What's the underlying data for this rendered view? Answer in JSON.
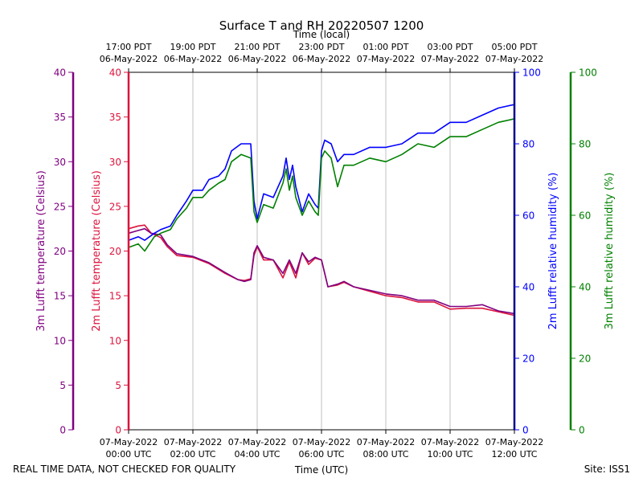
{
  "chart_data": {
    "type": "line",
    "title": "Surface T and RH 20220507 1200",
    "top_axis_label": "Time (local)",
    "xlabel": "Time (UTC)",
    "xlim_hours_utc": [
      0,
      12
    ],
    "bottom_ticks": [
      {
        "hour": 0,
        "date": "07-May-2022",
        "time": "00:00 UTC"
      },
      {
        "hour": 2,
        "date": "07-May-2022",
        "time": "02:00 UTC"
      },
      {
        "hour": 4,
        "date": "07-May-2022",
        "time": "04:00 UTC"
      },
      {
        "hour": 6,
        "date": "07-May-2022",
        "time": "06:00 UTC"
      },
      {
        "hour": 8,
        "date": "07-May-2022",
        "time": "08:00 UTC"
      },
      {
        "hour": 10,
        "date": "07-May-2022",
        "time": "10:00 UTC"
      },
      {
        "hour": 12,
        "date": "07-May-2022",
        "time": "12:00 UTC"
      }
    ],
    "top_ticks": [
      {
        "hour": 0,
        "time": "17:00 PDT",
        "date": "06-May-2022"
      },
      {
        "hour": 2,
        "time": "19:00 PDT",
        "date": "06-May-2022"
      },
      {
        "hour": 4,
        "time": "21:00 PDT",
        "date": "06-May-2022"
      },
      {
        "hour": 6,
        "time": "23:00 PDT",
        "date": "06-May-2022"
      },
      {
        "hour": 8,
        "time": "01:00 PDT",
        "date": "07-May-2022"
      },
      {
        "hour": 10,
        "time": "03:00 PDT",
        "date": "07-May-2022"
      },
      {
        "hour": 12,
        "time": "05:00 PDT",
        "date": "07-May-2022"
      }
    ],
    "axes": [
      {
        "id": "t3",
        "label": "3m Lufft temperature (Celsius)",
        "color": "#800080",
        "side": "left",
        "ylim": [
          0,
          40
        ],
        "ticks": [
          0,
          5,
          10,
          15,
          20,
          25,
          30,
          35,
          40
        ]
      },
      {
        "id": "t2",
        "label": "2m Lufft temperature (Celsius)",
        "color": "#dc143c",
        "side": "left",
        "ylim": [
          0,
          40
        ],
        "ticks": [
          0,
          5,
          10,
          15,
          20,
          25,
          30,
          35,
          40
        ]
      },
      {
        "id": "rh2",
        "label": "2m Lufft relative humidity (%)",
        "color": "#0000ff",
        "tick_color": "#0000ff",
        "spine_color": "#00008b",
        "side": "right",
        "ylim": [
          0,
          100
        ],
        "ticks": [
          0,
          20,
          40,
          60,
          80,
          100
        ]
      },
      {
        "id": "rh3",
        "label": "3m Lufft relative humidity (%)",
        "color": "#008000",
        "side": "right",
        "ylim": [
          0,
          100
        ],
        "ticks": [
          0,
          20,
          40,
          60,
          80,
          100
        ]
      }
    ],
    "series": [
      {
        "name": "2m Lufft temperature",
        "axis": "t2",
        "color": "#dc143c",
        "x": [
          0,
          0.3,
          0.5,
          0.7,
          1.0,
          1.2,
          1.5,
          2.0,
          2.5,
          3.0,
          3.4,
          3.6,
          3.8,
          3.9,
          4.0,
          4.2,
          4.5,
          4.8,
          5.0,
          5.2,
          5.4,
          5.6,
          5.8,
          6.0,
          6.2,
          6.5,
          6.7,
          7.0,
          7.5,
          8.0,
          8.5,
          9.0,
          9.5,
          10.0,
          10.5,
          11.0,
          11.5,
          12.0
        ],
        "values": [
          22.5,
          22.8,
          22.9,
          22.0,
          21.5,
          20.5,
          19.5,
          19.3,
          18.6,
          17.5,
          16.8,
          16.7,
          16.9,
          19.5,
          20.5,
          19.0,
          19.0,
          17.0,
          18.8,
          17.0,
          19.8,
          18.5,
          19.2,
          19.0,
          16.0,
          16.2,
          16.5,
          16.0,
          15.5,
          15.0,
          14.8,
          14.3,
          14.3,
          13.5,
          13.6,
          13.6,
          13.2,
          12.8
        ]
      },
      {
        "name": "3m Lufft temperature",
        "axis": "t3",
        "color": "#800080",
        "x": [
          0,
          0.3,
          0.5,
          0.7,
          1.0,
          1.2,
          1.5,
          2.0,
          2.5,
          3.0,
          3.4,
          3.6,
          3.8,
          3.9,
          4.0,
          4.2,
          4.5,
          4.8,
          5.0,
          5.2,
          5.4,
          5.6,
          5.8,
          6.0,
          6.2,
          6.5,
          6.7,
          7.0,
          7.5,
          8.0,
          8.5,
          9.0,
          9.5,
          10.0,
          10.5,
          11.0,
          11.5,
          12.0
        ],
        "values": [
          22.0,
          22.3,
          22.5,
          22.0,
          21.8,
          20.7,
          19.7,
          19.4,
          18.7,
          17.6,
          16.8,
          16.6,
          16.8,
          19.8,
          20.6,
          19.3,
          19.0,
          17.5,
          19.0,
          17.5,
          19.8,
          18.8,
          19.3,
          19.0,
          16.0,
          16.3,
          16.6,
          16.0,
          15.6,
          15.2,
          15.0,
          14.5,
          14.5,
          13.8,
          13.8,
          14.0,
          13.3,
          13.0
        ]
      },
      {
        "name": "2m Lufft relative humidity",
        "axis": "rh2",
        "color": "#0000ff",
        "x": [
          0,
          0.3,
          0.5,
          0.8,
          1.0,
          1.3,
          1.5,
          1.8,
          2.0,
          2.3,
          2.5,
          2.8,
          3.0,
          3.2,
          3.5,
          3.8,
          3.9,
          4.0,
          4.2,
          4.5,
          4.8,
          4.9,
          5.0,
          5.1,
          5.2,
          5.4,
          5.6,
          5.8,
          5.9,
          6.0,
          6.1,
          6.3,
          6.5,
          6.7,
          7.0,
          7.5,
          8.0,
          8.5,
          9.0,
          9.5,
          10.0,
          10.5,
          11.0,
          11.5,
          12.0
        ],
        "values": [
          53,
          54,
          53,
          55,
          56,
          57,
          60,
          64,
          67,
          67,
          70,
          71,
          73,
          78,
          80,
          80,
          64,
          59,
          66,
          65,
          71,
          76,
          70,
          74,
          68,
          61,
          66,
          63,
          62,
          78,
          81,
          80,
          75,
          77,
          77,
          79,
          79,
          80,
          83,
          83,
          86,
          86,
          88,
          90,
          91
        ]
      },
      {
        "name": "3m Lufft relative humidity",
        "axis": "rh3",
        "color": "#008000",
        "x": [
          0,
          0.3,
          0.5,
          0.8,
          1.0,
          1.3,
          1.5,
          1.8,
          2.0,
          2.3,
          2.5,
          2.8,
          3.0,
          3.2,
          3.5,
          3.8,
          3.9,
          4.0,
          4.2,
          4.5,
          4.8,
          4.9,
          5.0,
          5.1,
          5.2,
          5.4,
          5.6,
          5.8,
          5.9,
          6.0,
          6.1,
          6.3,
          6.5,
          6.7,
          7.0,
          7.5,
          8.0,
          8.5,
          9.0,
          9.5,
          10.0,
          10.5,
          11.0,
          11.5,
          12.0
        ],
        "values": [
          51,
          52,
          50,
          54,
          55,
          56,
          59,
          62,
          65,
          65,
          67,
          69,
          70,
          75,
          77,
          76,
          61,
          58,
          63,
          62,
          69,
          73,
          67,
          71,
          65,
          60,
          64,
          61,
          60,
          76,
          78,
          76,
          68,
          74,
          74,
          76,
          75,
          77,
          80,
          79,
          82,
          82,
          84,
          86,
          87
        ]
      }
    ],
    "grid": "vertical"
  },
  "footer": {
    "disclaimer": "REAL TIME DATA, NOT CHECKED FOR QUALITY",
    "site": "Site: ISS1"
  }
}
